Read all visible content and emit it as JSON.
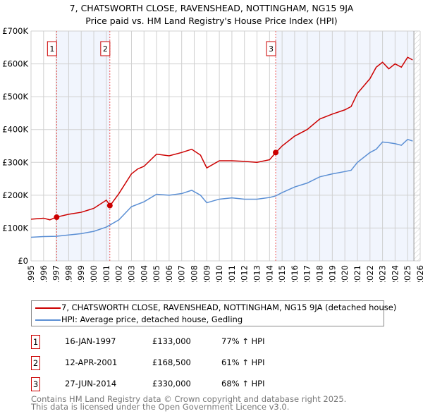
{
  "title": "7, CHATSWORTH CLOSE, RAVENSHEAD, NOTTINGHAM, NG15 9JA",
  "subtitle": "Price paid vs. HM Land Registry's House Price Index (HPI)",
  "chart_data": {
    "type": "line",
    "title": "7, CHATSWORTH CLOSE, RAVENSHEAD, NOTTINGHAM, NG15 9JA",
    "xlim": [
      1995,
      2026
    ],
    "ylim": [
      0,
      700000
    ],
    "yticks": [
      {
        "v": 0,
        "label": "£0"
      },
      {
        "v": 100000,
        "label": "£100K"
      },
      {
        "v": 200000,
        "label": "£200K"
      },
      {
        "v": 300000,
        "label": "£300K"
      },
      {
        "v": 400000,
        "label": "£400K"
      },
      {
        "v": 500000,
        "label": "£500K"
      },
      {
        "v": 600000,
        "label": "£600K"
      },
      {
        "v": 700000,
        "label": "£700K"
      }
    ],
    "xticks": [
      "1995",
      "1996",
      "1997",
      "1998",
      "1999",
      "2000",
      "2001",
      "2002",
      "2003",
      "2004",
      "2005",
      "2006",
      "2007",
      "2008",
      "2009",
      "2010",
      "2011",
      "2012",
      "2013",
      "2014",
      "2015",
      "2016",
      "2017",
      "2018",
      "2019",
      "2020",
      "2021",
      "2022",
      "2023",
      "2024",
      "2025",
      "2026"
    ],
    "series": [
      {
        "name": "7, CHATSWORTH CLOSE, RAVENSHEAD, NOTTINGHAM, NG15 9JA (detached house)",
        "color": "#cc0000",
        "x": [
          1995,
          1996,
          1996.5,
          1997,
          1998,
          1999,
          2000,
          2001,
          2001.3,
          2002,
          2003,
          2003.5,
          2004,
          2005,
          2006,
          2007,
          2007.8,
          2008.5,
          2009,
          2010,
          2011,
          2012,
          2013,
          2014,
          2014.5,
          2015,
          2016,
          2017,
          2018,
          2019,
          2020,
          2020.5,
          2021,
          2022,
          2022.5,
          2023,
          2023.5,
          2024,
          2024.5,
          2025,
          2025.4
        ],
        "y": [
          127000,
          130000,
          125000,
          133000,
          142000,
          148000,
          160000,
          185000,
          168500,
          205000,
          265000,
          280000,
          288000,
          325000,
          320000,
          330000,
          340000,
          322000,
          283000,
          305000,
          305000,
          303000,
          300000,
          308000,
          330000,
          350000,
          380000,
          400000,
          432000,
          447000,
          460000,
          470000,
          510000,
          555000,
          590000,
          605000,
          585000,
          600000,
          590000,
          620000,
          612000
        ]
      },
      {
        "name": "HPI: Average price, detached house, Gedling",
        "color": "#5b8fd4",
        "x": [
          1995,
          1996,
          1997,
          1998,
          1999,
          2000,
          2001,
          2002,
          2003,
          2004,
          2005,
          2006,
          2007,
          2007.8,
          2008.5,
          2009,
          2010,
          2011,
          2012,
          2013,
          2014,
          2014.5,
          2015,
          2016,
          2017,
          2018,
          2019,
          2020,
          2020.5,
          2021,
          2022,
          2022.5,
          2023,
          2023.5,
          2024,
          2024.5,
          2025,
          2025.4
        ],
        "y": [
          72000,
          74000,
          75000,
          79000,
          83000,
          90000,
          103000,
          125000,
          165000,
          180000,
          203000,
          200000,
          205000,
          215000,
          200000,
          177000,
          188000,
          192000,
          188000,
          188000,
          193000,
          198000,
          208000,
          225000,
          237000,
          256000,
          265000,
          272000,
          276000,
          300000,
          330000,
          340000,
          362000,
          360000,
          357000,
          352000,
          370000,
          365000
        ]
      }
    ],
    "sales": [
      {
        "n": "1",
        "date": "16-JAN-1997",
        "x": 1997.04,
        "price": "£133,000",
        "y": 133000,
        "hpi": "77% ↑ HPI"
      },
      {
        "n": "2",
        "date": "12-APR-2001",
        "x": 2001.28,
        "price": "£168,500",
        "y": 168500,
        "hpi": "61% ↑ HPI"
      },
      {
        "n": "3",
        "date": "27-JUN-2014",
        "x": 2014.49,
        "price": "£330,000",
        "y": 330000,
        "hpi": "68% ↑ HPI"
      }
    ],
    "data_end": 2025.5
  },
  "footer": [
    "Contains HM Land Registry data © Crown copyright and database right 2025.",
    "This data is licensed under the Open Government Licence v3.0."
  ]
}
